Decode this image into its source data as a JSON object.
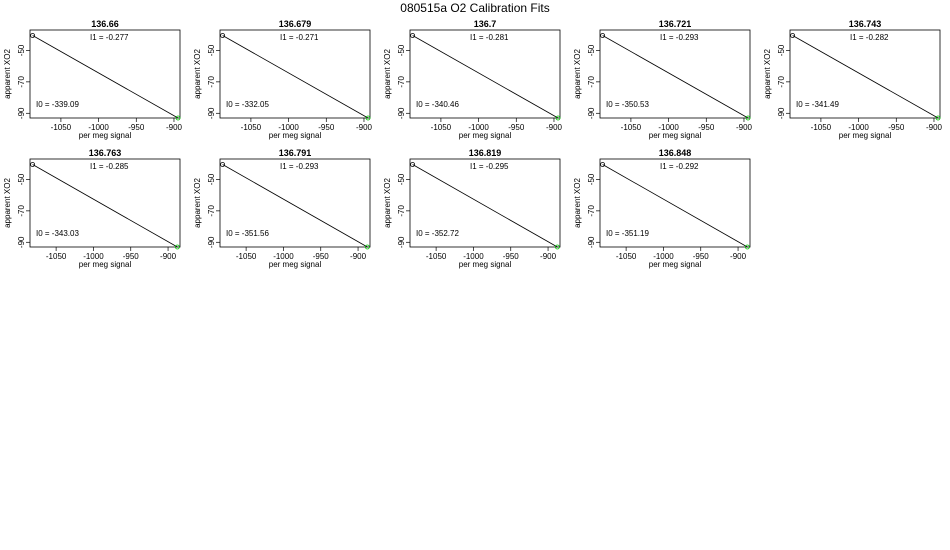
{
  "page": {
    "title": "080515a   O2 Calibration Fits"
  },
  "chart_data": [
    {
      "type": "scatter",
      "title": "136.66",
      "xlabel": "per meg signal",
      "ylabel": "apparent XO2",
      "xlim": [
        -1091,
        -892
      ],
      "ylim": [
        -93,
        -37
      ],
      "xticks": [
        -1050,
        -1000,
        -950,
        -900
      ],
      "yticks": [
        -50,
        -70,
        -90
      ],
      "x": [
        -1087.5,
        -894.6
      ],
      "y": [
        -40.5,
        -93.0
      ],
      "fit_line": {
        "x": [
          -1087.5,
          -894.6
        ],
        "y": [
          -40.5,
          -93.0
        ]
      },
      "annotations": [
        "I1 =  -0.277",
        "I0 =  -339.09"
      ],
      "grid": false,
      "legend": "none"
    },
    {
      "type": "scatter",
      "title": "136.679",
      "xlabel": "per meg signal",
      "ylabel": "apparent XO2",
      "xlim": [
        -1091,
        -892
      ],
      "ylim": [
        -93,
        -37
      ],
      "xticks": [
        -1050,
        -1000,
        -950,
        -900
      ],
      "yticks": [
        -50,
        -70,
        -90
      ],
      "x": [
        -1087.5,
        -894.6
      ],
      "y": [
        -40.5,
        -93.0
      ],
      "fit_line": {
        "x": [
          -1087.5,
          -894.6
        ],
        "y": [
          -40.5,
          -93.0
        ]
      },
      "annotations": [
        "I1 =  -0.271",
        "I0 =  -332.05"
      ],
      "grid": false,
      "legend": "none"
    },
    {
      "type": "scatter",
      "title": "136.7",
      "xlabel": "per meg signal",
      "ylabel": "apparent XO2",
      "xlim": [
        -1091,
        -892
      ],
      "ylim": [
        -93,
        -37
      ],
      "xticks": [
        -1050,
        -1000,
        -950,
        -900
      ],
      "yticks": [
        -50,
        -70,
        -90
      ],
      "x": [
        -1087.5,
        -894.6
      ],
      "y": [
        -40.5,
        -93.0
      ],
      "fit_line": {
        "x": [
          -1087.5,
          -894.6
        ],
        "y": [
          -40.5,
          -93.0
        ]
      },
      "annotations": [
        "I1 =  -0.281",
        "I0 =  -340.46"
      ],
      "grid": false,
      "legend": "none"
    },
    {
      "type": "scatter",
      "title": "136.721",
      "xlabel": "per meg signal",
      "ylabel": "apparent XO2",
      "xlim": [
        -1091,
        -892
      ],
      "ylim": [
        -93,
        -37
      ],
      "xticks": [
        -1050,
        -1000,
        -950,
        -900
      ],
      "yticks": [
        -50,
        -70,
        -90
      ],
      "x": [
        -1087.5,
        -894.6
      ],
      "y": [
        -40.5,
        -93.0
      ],
      "fit_line": {
        "x": [
          -1087.5,
          -894.6
        ],
        "y": [
          -40.5,
          -93.0
        ]
      },
      "annotations": [
        "I1 =  -0.293",
        "I0 =  -350.53"
      ],
      "grid": false,
      "legend": "none"
    },
    {
      "type": "scatter",
      "title": "136.743",
      "xlabel": "per meg signal",
      "ylabel": "apparent XO2",
      "xlim": [
        -1091,
        -892
      ],
      "ylim": [
        -93,
        -37
      ],
      "xticks": [
        -1050,
        -1000,
        -950,
        -900
      ],
      "yticks": [
        -50,
        -70,
        -90
      ],
      "x": [
        -1087.5,
        -894.6
      ],
      "y": [
        -40.5,
        -93.0
      ],
      "fit_line": {
        "x": [
          -1087.5,
          -894.6
        ],
        "y": [
          -40.5,
          -93.0
        ]
      },
      "annotations": [
        "I1 =  -0.282",
        "I0 =  -341.49"
      ],
      "grid": false,
      "legend": "none"
    },
    {
      "type": "scatter",
      "title": "136.763",
      "xlabel": "per meg signal",
      "ylabel": "apparent XO2",
      "xlim": [
        -1085,
        -884
      ],
      "ylim": [
        -93,
        -37
      ],
      "xticks": [
        -1050,
        -1000,
        -950,
        -900
      ],
      "yticks": [
        -50,
        -70,
        -90
      ],
      "x": [
        -1081.5,
        -887.5
      ],
      "y": [
        -40.5,
        -93.0
      ],
      "fit_line": {
        "x": [
          -1081.5,
          -887.5
        ],
        "y": [
          -40.5,
          -93.0
        ]
      },
      "annotations": [
        "I1 =  -0.285",
        "I0 =  -343.03"
      ],
      "grid": false,
      "legend": "none"
    },
    {
      "type": "scatter",
      "title": "136.791",
      "xlabel": "per meg signal",
      "ylabel": "apparent XO2",
      "xlim": [
        -1085,
        -884
      ],
      "ylim": [
        -93,
        -37
      ],
      "xticks": [
        -1050,
        -1000,
        -950,
        -900
      ],
      "yticks": [
        -50,
        -70,
        -90
      ],
      "x": [
        -1081.5,
        -887.5
      ],
      "y": [
        -40.5,
        -93.0
      ],
      "fit_line": {
        "x": [
          -1081.5,
          -887.5
        ],
        "y": [
          -40.5,
          -93.0
        ]
      },
      "annotations": [
        "I1 =  -0.293",
        "I0 =  -351.56"
      ],
      "grid": false,
      "legend": "none"
    },
    {
      "type": "scatter",
      "title": "136.819",
      "xlabel": "per meg signal",
      "ylabel": "apparent XO2",
      "xlim": [
        -1085,
        -884
      ],
      "ylim": [
        -93,
        -37
      ],
      "xticks": [
        -1050,
        -1000,
        -950,
        -900
      ],
      "yticks": [
        -50,
        -70,
        -90
      ],
      "x": [
        -1081.5,
        -887.5
      ],
      "y": [
        -40.5,
        -93.0
      ],
      "fit_line": {
        "x": [
          -1081.5,
          -887.5
        ],
        "y": [
          -40.5,
          -93.0
        ]
      },
      "annotations": [
        "I1 =  -0.295",
        "I0 =  -352.72"
      ],
      "grid": false,
      "legend": "none"
    },
    {
      "type": "scatter",
      "title": "136.848",
      "xlabel": "per meg signal",
      "ylabel": "apparent XO2",
      "xlim": [
        -1085,
        -884
      ],
      "ylim": [
        -93,
        -37
      ],
      "xticks": [
        -1050,
        -1000,
        -950,
        -900
      ],
      "yticks": [
        -50,
        -70,
        -90
      ],
      "x": [
        -1081.5,
        -887.5
      ],
      "y": [
        -40.5,
        -93.0
      ],
      "fit_line": {
        "x": [
          -1081.5,
          -887.5
        ],
        "y": [
          -40.5,
          -93.0
        ]
      },
      "annotations": [
        "I1 =  -0.292",
        "I0 =  -351.19"
      ],
      "grid": false,
      "legend": "none"
    }
  ],
  "colors": {
    "first_point": "#000000",
    "last_point": "#00c000",
    "fit_line": "#000000",
    "axis": "#000000"
  }
}
